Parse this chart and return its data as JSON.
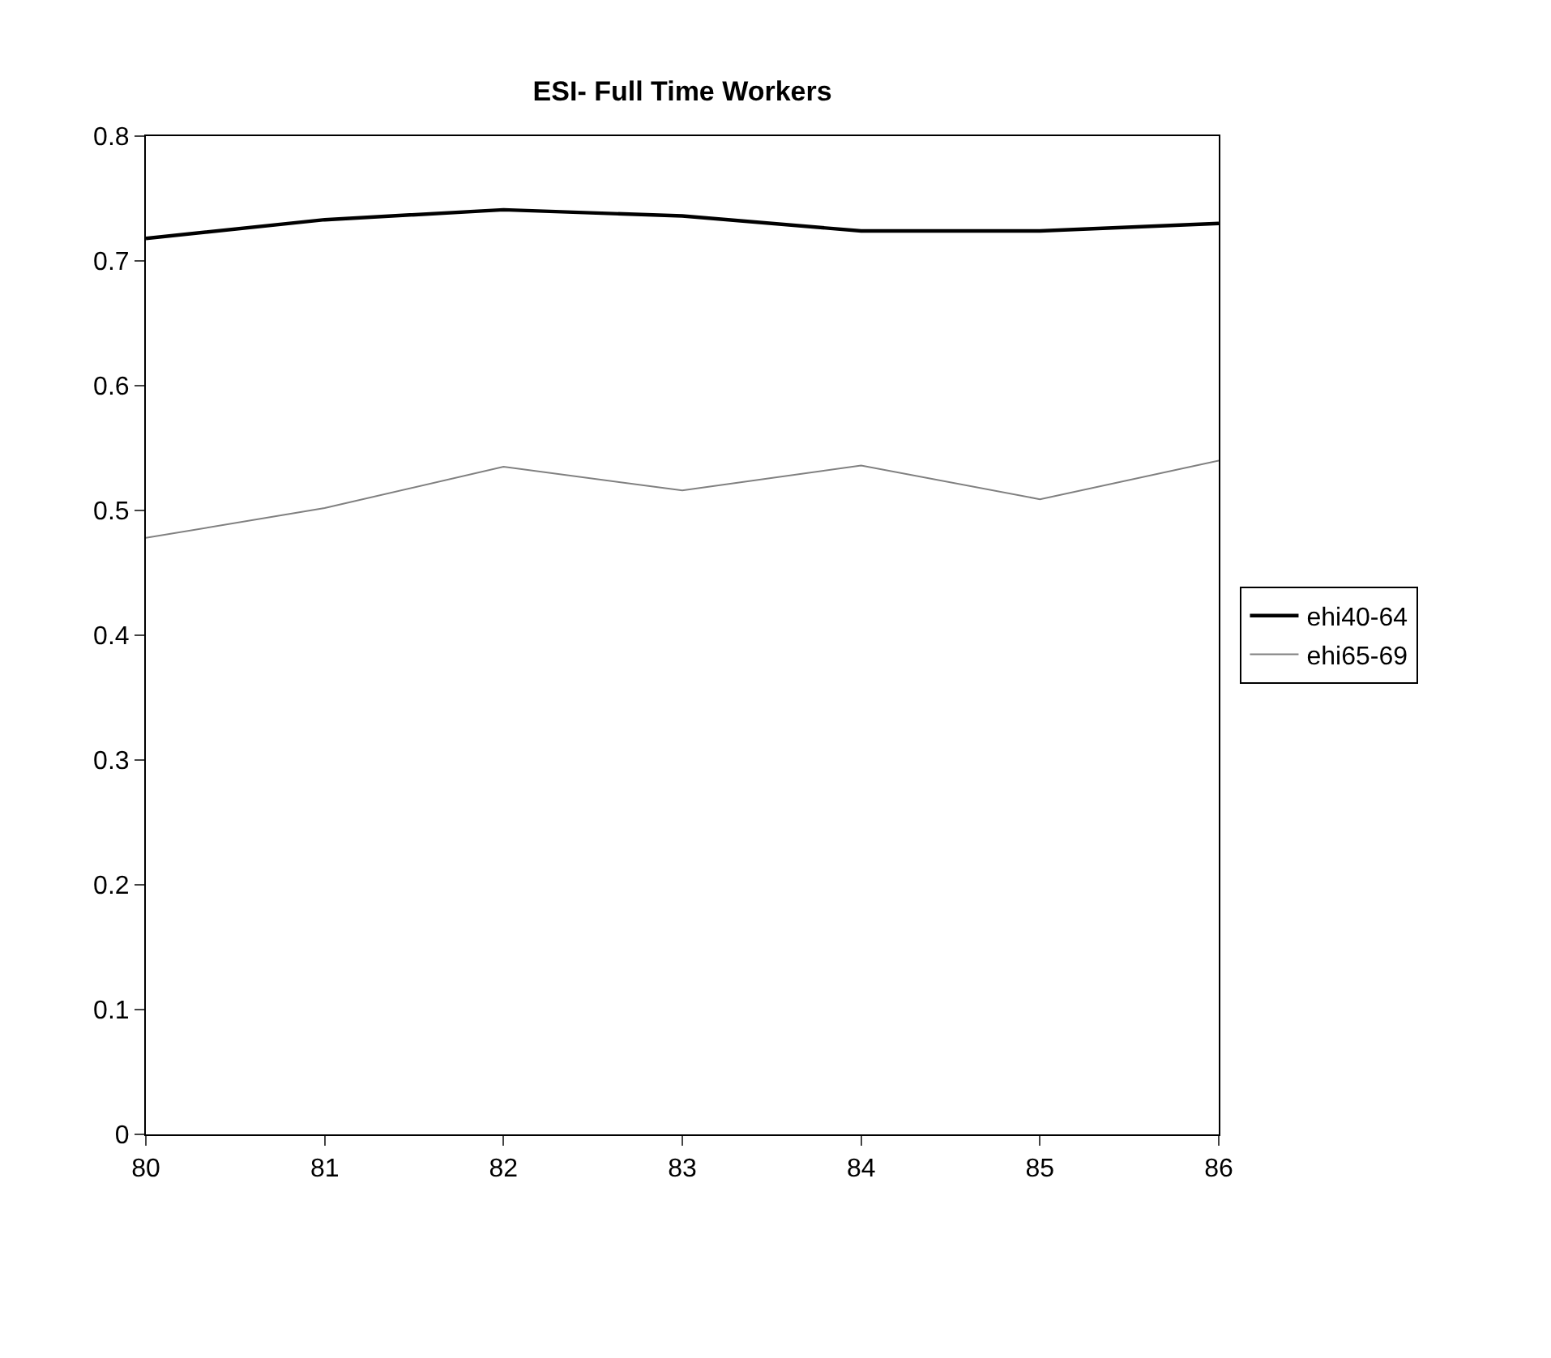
{
  "chart_data": {
    "type": "line",
    "title": "ESI- Full Time Workers",
    "x": [
      80,
      81,
      82,
      83,
      84,
      85,
      86
    ],
    "series": [
      {
        "name": "ehi40-64",
        "color": "#000000",
        "values": [
          0.718,
          0.733,
          0.741,
          0.736,
          0.724,
          0.724,
          0.73
        ]
      },
      {
        "name": "ehi65-69",
        "color": "#808080",
        "values": [
          0.478,
          0.502,
          0.535,
          0.516,
          0.536,
          0.509,
          0.54
        ]
      }
    ],
    "xlim": [
      80,
      86
    ],
    "xticks": [
      80,
      81,
      82,
      83,
      84,
      85,
      86
    ],
    "ylim": [
      0,
      0.8
    ],
    "yticks": [
      0,
      0.1,
      0.2,
      0.3,
      0.4,
      0.5,
      0.6,
      0.7,
      0.8
    ],
    "grid": false,
    "legend": "right",
    "marker": "none",
    "line_style": "solid"
  }
}
